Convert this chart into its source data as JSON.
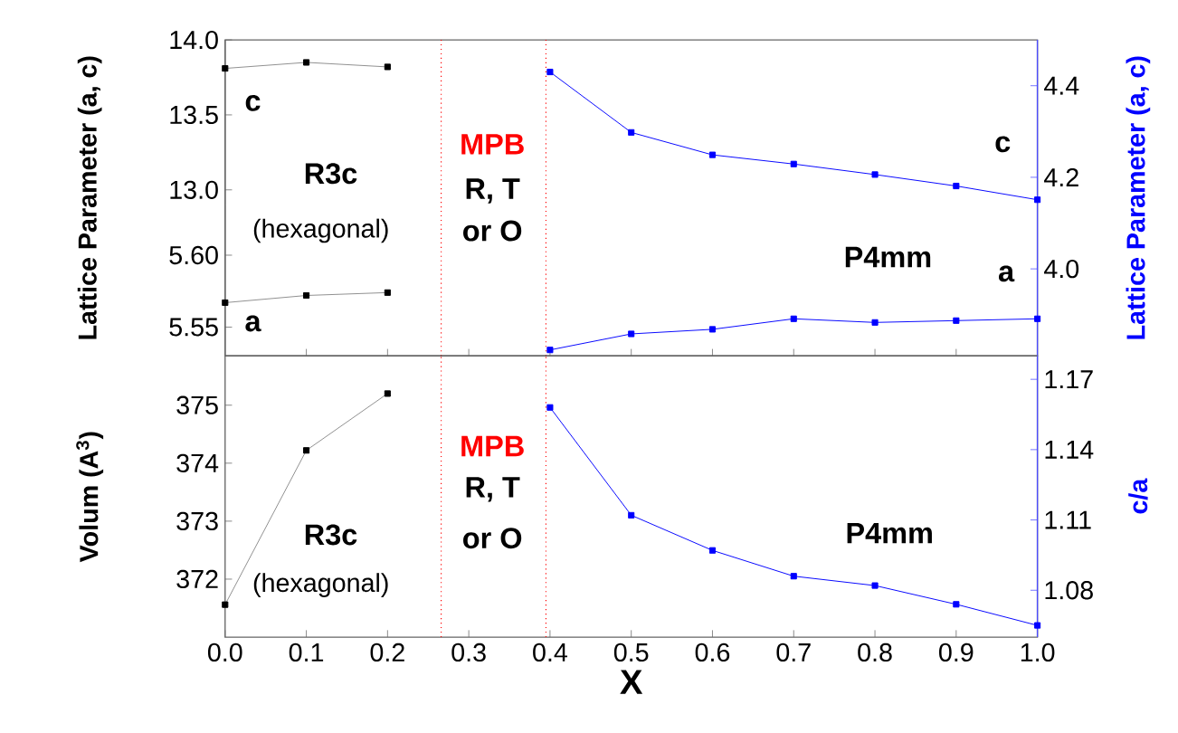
{
  "chart_data": [
    {
      "type": "line",
      "x": [
        0.4,
        0.5,
        0.6,
        0.7,
        0.8,
        0.9,
        1.0
      ],
      "xlim": [
        0,
        1
      ],
      "xticks": [
        0.1,
        0.2,
        0.3,
        0.4,
        0.5,
        0.6,
        0.7,
        0.8,
        0.9
      ],
      "tick_labels": false,
      "ylabel": "Lattice Parameter (a, c)",
      "y2label": "Lattice Parameter (a, c)",
      "y2lim": [
        3.81,
        4.5
      ],
      "y2ticks": [
        {
          "value": 4,
          "label": "4.0"
        },
        {
          "value": 4.2,
          "label": "4.2"
        },
        {
          "value": 4.4,
          "label": "4.4"
        }
      ],
      "marker": "square",
      "line_style": "solid",
      "series": [
        {
          "name": "c",
          "color": "#0000ff",
          "axis": "y2",
          "values": [
            4.43,
            4.298,
            4.249,
            4.229,
            4.206,
            4.181,
            4.151
          ]
        },
        {
          "name": "a",
          "color": "#0000ff",
          "axis": "y2",
          "values": [
            3.823,
            3.858,
            3.868,
            3.891,
            3.883,
            3.887,
            3.891
          ]
        }
      ],
      "ref_lines": [
        {
          "axis": "x",
          "value": 0.266,
          "color": "#ff0000",
          "line_style": "dotted"
        },
        {
          "axis": "x",
          "value": 0.395,
          "color": "#ff0000",
          "line_style": "dotted"
        }
      ],
      "annotations": [
        "R3c",
        "(hexagonal)",
        "MPB",
        "R, T",
        "or O",
        "P4mm"
      ]
    },
    {
      "type": "line",
      "x": [
        0,
        0.1,
        0.2
      ],
      "xlim": [
        0,
        1
      ],
      "tick_labels": "y",
      "ylim": [
        12.9,
        14.0
      ],
      "yticks": [
        {
          "value": 13,
          "label": "13.0"
        },
        13.5,
        {
          "value": 14,
          "label": "14.0"
        }
      ],
      "marker": "square",
      "line_style": "solid",
      "series": [
        {
          "name": "c",
          "color": "#000000",
          "values": [
            13.81,
            13.85,
            13.82
          ]
        }
      ]
    },
    {
      "type": "line",
      "x": [
        0,
        0.1,
        0.2
      ],
      "xlim": [
        0,
        1
      ],
      "tick_labels": "y",
      "ylim": [
        5.53,
        5.635
      ],
      "yticks": [
        5.55,
        {
          "value": 5.6,
          "label": "5.60"
        }
      ],
      "marker": "square",
      "line_style": "solid",
      "series": [
        {
          "name": "a",
          "color": "#000000",
          "values": [
            5.567,
            5.572,
            5.574
          ]
        }
      ]
    },
    {
      "type": "line",
      "xlim": [
        0,
        1
      ],
      "xticks": [
        {
          "value": 0,
          "label": "0.0"
        },
        0.1,
        0.2,
        0.3,
        0.4,
        0.5,
        0.6,
        0.7,
        0.8,
        0.9,
        {
          "value": 1,
          "label": "1.0"
        }
      ],
      "xlabel": "X",
      "ylabel": "Volum (A$^{3}$)",
      "y2label": "c/a",
      "ylim": [
        371,
        375.85
      ],
      "yticks": [
        372,
        373,
        374,
        375
      ],
      "y2lim": [
        1.06,
        1.18
      ],
      "y2ticks": [
        1.08,
        1.11,
        1.14,
        1.17
      ],
      "marker": "square",
      "line_style": "solid",
      "series": [
        {
          "color": "#000000",
          "x": [
            0,
            0.1,
            0.2
          ],
          "values": [
            371.56,
            374.22,
            375.2
          ]
        },
        {
          "color": "#0000ff",
          "axis": "y2",
          "x": [
            0.4,
            0.5,
            0.6,
            0.7,
            0.8,
            0.9,
            1.0
          ],
          "values": [
            1.158,
            1.112,
            1.097,
            1.086,
            1.082,
            1.074,
            1.065
          ]
        }
      ],
      "ref_lines": [
        {
          "axis": "x",
          "value": 0.266,
          "color": "#ff0000",
          "line_style": "dotted"
        },
        {
          "axis": "x",
          "value": 0.395,
          "color": "#ff0000",
          "line_style": "dotted"
        }
      ],
      "annotations": [
        "MPB",
        "R, T",
        "or O",
        "R3c",
        "(hexagonal)",
        "P4mm"
      ]
    }
  ]
}
